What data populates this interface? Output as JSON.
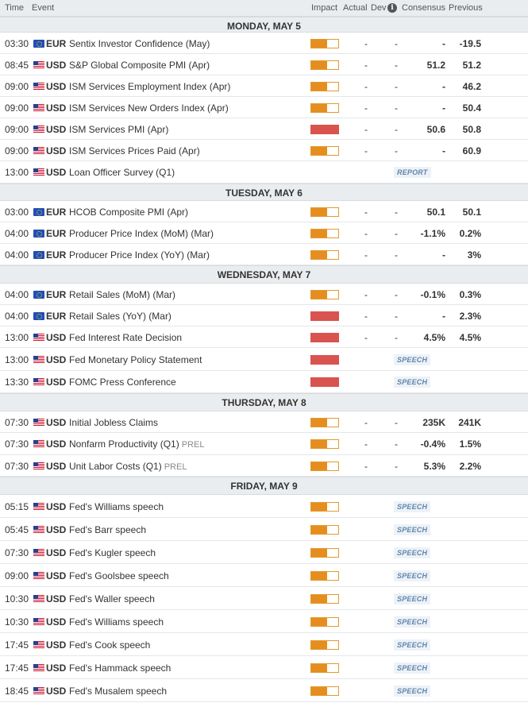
{
  "header": {
    "time": "Time",
    "event": "Event",
    "impact": "Impact",
    "actual": "Actual",
    "dev": "Dev",
    "consensus": "Consensus",
    "previous": "Previous"
  },
  "days": [
    {
      "label": "MONDAY, MAY 5",
      "rows": [
        {
          "time": "03:30",
          "flag": "eu",
          "ccy": "EUR",
          "event": "Sentix Investor Confidence (May)",
          "impact": "medium",
          "actual": "-",
          "dev": "-",
          "consensus": "-",
          "previous": "-19.5"
        },
        {
          "time": "08:45",
          "flag": "us",
          "ccy": "USD",
          "event": "S&P Global Composite PMI (Apr)",
          "impact": "medium",
          "actual": "-",
          "dev": "-",
          "consensus": "51.2",
          "previous": "51.2"
        },
        {
          "time": "09:00",
          "flag": "us",
          "ccy": "USD",
          "event": "ISM Services Employment Index (Apr)",
          "impact": "medium",
          "actual": "-",
          "dev": "-",
          "consensus": "-",
          "previous": "46.2"
        },
        {
          "time": "09:00",
          "flag": "us",
          "ccy": "USD",
          "event": "ISM Services New Orders Index (Apr)",
          "impact": "medium",
          "actual": "-",
          "dev": "-",
          "consensus": "-",
          "previous": "50.4"
        },
        {
          "time": "09:00",
          "flag": "us",
          "ccy": "USD",
          "event": "ISM Services PMI (Apr)",
          "impact": "high",
          "actual": "-",
          "dev": "-",
          "consensus": "50.6",
          "previous": "50.8"
        },
        {
          "time": "09:00",
          "flag": "us",
          "ccy": "USD",
          "event": "ISM Services Prices Paid (Apr)",
          "impact": "medium",
          "actual": "-",
          "dev": "-",
          "consensus": "-",
          "previous": "60.9"
        },
        {
          "time": "13:00",
          "flag": "us",
          "ccy": "USD",
          "event": "Loan Officer Survey (Q1)",
          "impact": "none",
          "badge": "REPORT"
        }
      ]
    },
    {
      "label": "TUESDAY, MAY 6",
      "rows": [
        {
          "time": "03:00",
          "flag": "eu",
          "ccy": "EUR",
          "event": "HCOB Composite PMI (Apr)",
          "impact": "medium",
          "actual": "-",
          "dev": "-",
          "consensus": "50.1",
          "previous": "50.1"
        },
        {
          "time": "04:00",
          "flag": "eu",
          "ccy": "EUR",
          "event": "Producer Price Index (MoM) (Mar)",
          "impact": "medium",
          "actual": "-",
          "dev": "-",
          "consensus": "-1.1%",
          "previous": "0.2%"
        },
        {
          "time": "04:00",
          "flag": "eu",
          "ccy": "EUR",
          "event": "Producer Price Index (YoY) (Mar)",
          "impact": "medium",
          "actual": "-",
          "dev": "-",
          "consensus": "-",
          "previous": "3%"
        }
      ]
    },
    {
      "label": "WEDNESDAY, MAY 7",
      "rows": [
        {
          "time": "04:00",
          "flag": "eu",
          "ccy": "EUR",
          "event": "Retail Sales (MoM) (Mar)",
          "impact": "medium",
          "actual": "-",
          "dev": "-",
          "consensus": "-0.1%",
          "previous": "0.3%"
        },
        {
          "time": "04:00",
          "flag": "eu",
          "ccy": "EUR",
          "event": "Retail Sales (YoY) (Mar)",
          "impact": "high",
          "actual": "-",
          "dev": "-",
          "consensus": "-",
          "previous": "2.3%"
        },
        {
          "time": "13:00",
          "flag": "us",
          "ccy": "USD",
          "event": "Fed Interest Rate Decision",
          "impact": "high",
          "actual": "-",
          "dev": "-",
          "consensus": "4.5%",
          "previous": "4.5%"
        },
        {
          "time": "13:00",
          "flag": "us",
          "ccy": "USD",
          "event": "Fed Monetary Policy Statement",
          "impact": "high",
          "badge": "SPEECH"
        },
        {
          "time": "13:30",
          "flag": "us",
          "ccy": "USD",
          "event": "FOMC Press Conference",
          "impact": "high",
          "badge": "SPEECH"
        }
      ]
    },
    {
      "label": "THURSDAY, MAY 8",
      "rows": [
        {
          "time": "07:30",
          "flag": "us",
          "ccy": "USD",
          "event": "Initial Jobless Claims",
          "impact": "medium",
          "actual": "-",
          "dev": "-",
          "consensus": "235K",
          "previous": "241K"
        },
        {
          "time": "07:30",
          "flag": "us",
          "ccy": "USD",
          "event": "Nonfarm Productivity (Q1)",
          "tag": "PREL",
          "impact": "medium",
          "actual": "-",
          "dev": "-",
          "consensus": "-0.4%",
          "previous": "1.5%"
        },
        {
          "time": "07:30",
          "flag": "us",
          "ccy": "USD",
          "event": "Unit Labor Costs (Q1)",
          "tag": "PREL",
          "impact": "medium",
          "actual": "-",
          "dev": "-",
          "consensus": "5.3%",
          "previous": "2.2%"
        }
      ]
    },
    {
      "label": "FRIDAY, MAY 9",
      "rows": [
        {
          "time": "05:15",
          "flag": "us",
          "ccy": "USD",
          "event": "Fed's Williams speech",
          "impact": "medium",
          "badge": "SPEECH"
        },
        {
          "time": "05:45",
          "flag": "us",
          "ccy": "USD",
          "event": "Fed's Barr speech",
          "impact": "medium",
          "badge": "SPEECH"
        },
        {
          "time": "07:30",
          "flag": "us",
          "ccy": "USD",
          "event": "Fed's Kugler speech",
          "impact": "medium",
          "badge": "SPEECH"
        },
        {
          "time": "09:00",
          "flag": "us",
          "ccy": "USD",
          "event": "Fed's Goolsbee speech",
          "impact": "medium",
          "badge": "SPEECH"
        },
        {
          "time": "10:30",
          "flag": "us",
          "ccy": "USD",
          "event": "Fed's Waller speech",
          "impact": "medium",
          "badge": "SPEECH"
        },
        {
          "time": "10:30",
          "flag": "us",
          "ccy": "USD",
          "event": "Fed's Williams speech",
          "impact": "medium",
          "badge": "SPEECH"
        },
        {
          "time": "17:45",
          "flag": "us",
          "ccy": "USD",
          "event": "Fed's Cook speech",
          "impact": "medium",
          "badge": "SPEECH"
        },
        {
          "time": "17:45",
          "flag": "us",
          "ccy": "USD",
          "event": "Fed's Hammack speech",
          "impact": "medium",
          "badge": "SPEECH"
        },
        {
          "time": "18:45",
          "flag": "us",
          "ccy": "USD",
          "event": "Fed's Musalem speech",
          "impact": "medium",
          "badge": "SPEECH"
        }
      ]
    }
  ],
  "impact_colors": {
    "medium": "#e58e1f",
    "high": "#d9534f"
  }
}
